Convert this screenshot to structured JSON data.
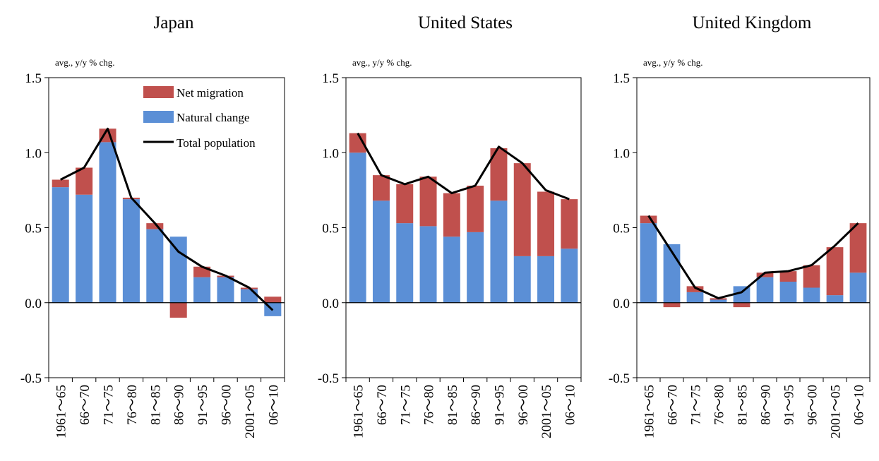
{
  "colors": {
    "natural_change": "#5B8FD6",
    "net_migration": "#C0504D",
    "total_population": "#000000",
    "axis": "#000000"
  },
  "chart_data": [
    {
      "type": "bar",
      "title": "Japan",
      "unit_label": "avg., y/y % chg.",
      "categories": [
        "1961～65",
        "66～70",
        "71～75",
        "76～80",
        "81～85",
        "86～90",
        "91～95",
        "96～00",
        "2001～05",
        "06～10"
      ],
      "ylim": [
        -0.5,
        1.5
      ],
      "yticks": [
        "1.5",
        "1.0",
        "0.5",
        "0.0",
        "-0.5"
      ],
      "ytick_values": [
        1.5,
        1.0,
        0.5,
        0.0,
        -0.5
      ],
      "grid": false,
      "legend_position": "top-right",
      "legend": [
        "Net migration",
        "Natural change",
        "Total population"
      ],
      "series": [
        {
          "name": "Natural change",
          "kind": "stacked-bar",
          "values": [
            0.77,
            0.72,
            1.07,
            0.69,
            0.49,
            0.44,
            0.17,
            0.17,
            0.09,
            -0.09
          ]
        },
        {
          "name": "Net migration",
          "kind": "stacked-bar",
          "values": [
            0.05,
            0.18,
            0.09,
            0.01,
            0.04,
            -0.1,
            0.07,
            0.01,
            0.01,
            0.04
          ]
        },
        {
          "name": "Total population",
          "kind": "line",
          "values": [
            0.82,
            0.9,
            1.16,
            0.7,
            0.53,
            0.34,
            0.24,
            0.18,
            0.1,
            -0.05
          ]
        }
      ]
    },
    {
      "type": "bar",
      "title": "United States",
      "unit_label": "avg., y/y % chg.",
      "categories": [
        "1961～65",
        "66～70",
        "71～75",
        "76～80",
        "81～85",
        "86～90",
        "91～95",
        "96～00",
        "2001～05",
        "06～10"
      ],
      "ylim": [
        -0.5,
        1.5
      ],
      "yticks": [
        "1.5",
        "1.0",
        "0.5",
        "0.0",
        "-0.5"
      ],
      "ytick_values": [
        1.5,
        1.0,
        0.5,
        0.0,
        -0.5
      ],
      "grid": false,
      "series": [
        {
          "name": "Natural change",
          "kind": "stacked-bar",
          "values": [
            1.0,
            0.68,
            0.53,
            0.51,
            0.44,
            0.47,
            0.68,
            0.31,
            0.31,
            0.36
          ]
        },
        {
          "name": "Net migration",
          "kind": "stacked-bar",
          "values": [
            0.13,
            0.17,
            0.26,
            0.33,
            0.29,
            0.31,
            0.35,
            0.62,
            0.43,
            0.33
          ]
        },
        {
          "name": "Total population",
          "kind": "line",
          "values": [
            1.13,
            0.85,
            0.79,
            0.84,
            0.73,
            0.78,
            1.04,
            0.93,
            0.75,
            0.69
          ]
        }
      ]
    },
    {
      "type": "bar",
      "title": "United Kingdom",
      "unit_label": "avg., y/y % chg.",
      "categories": [
        "1961～65",
        "66～70",
        "71～75",
        "76～80",
        "81～85",
        "86～90",
        "91～95",
        "96～00",
        "2001～05",
        "06～10"
      ],
      "ylim": [
        -0.5,
        1.5
      ],
      "yticks": [
        "1.5",
        "1.0",
        "0.5",
        "0.0",
        "-0.5"
      ],
      "ytick_values": [
        1.5,
        1.0,
        0.5,
        0.0,
        -0.5
      ],
      "grid": false,
      "series": [
        {
          "name": "Natural change",
          "kind": "stacked-bar",
          "values": [
            0.53,
            0.39,
            0.07,
            0.02,
            0.11,
            0.17,
            0.14,
            0.1,
            0.05,
            0.2
          ]
        },
        {
          "name": "Net migration",
          "kind": "stacked-bar",
          "values": [
            0.05,
            -0.03,
            0.04,
            0.01,
            -0.03,
            0.03,
            0.07,
            0.15,
            0.32,
            0.33
          ]
        },
        {
          "name": "Total population",
          "kind": "line",
          "values": [
            0.58,
            0.34,
            0.1,
            0.03,
            0.07,
            0.2,
            0.21,
            0.25,
            0.38,
            0.53
          ]
        }
      ]
    }
  ]
}
